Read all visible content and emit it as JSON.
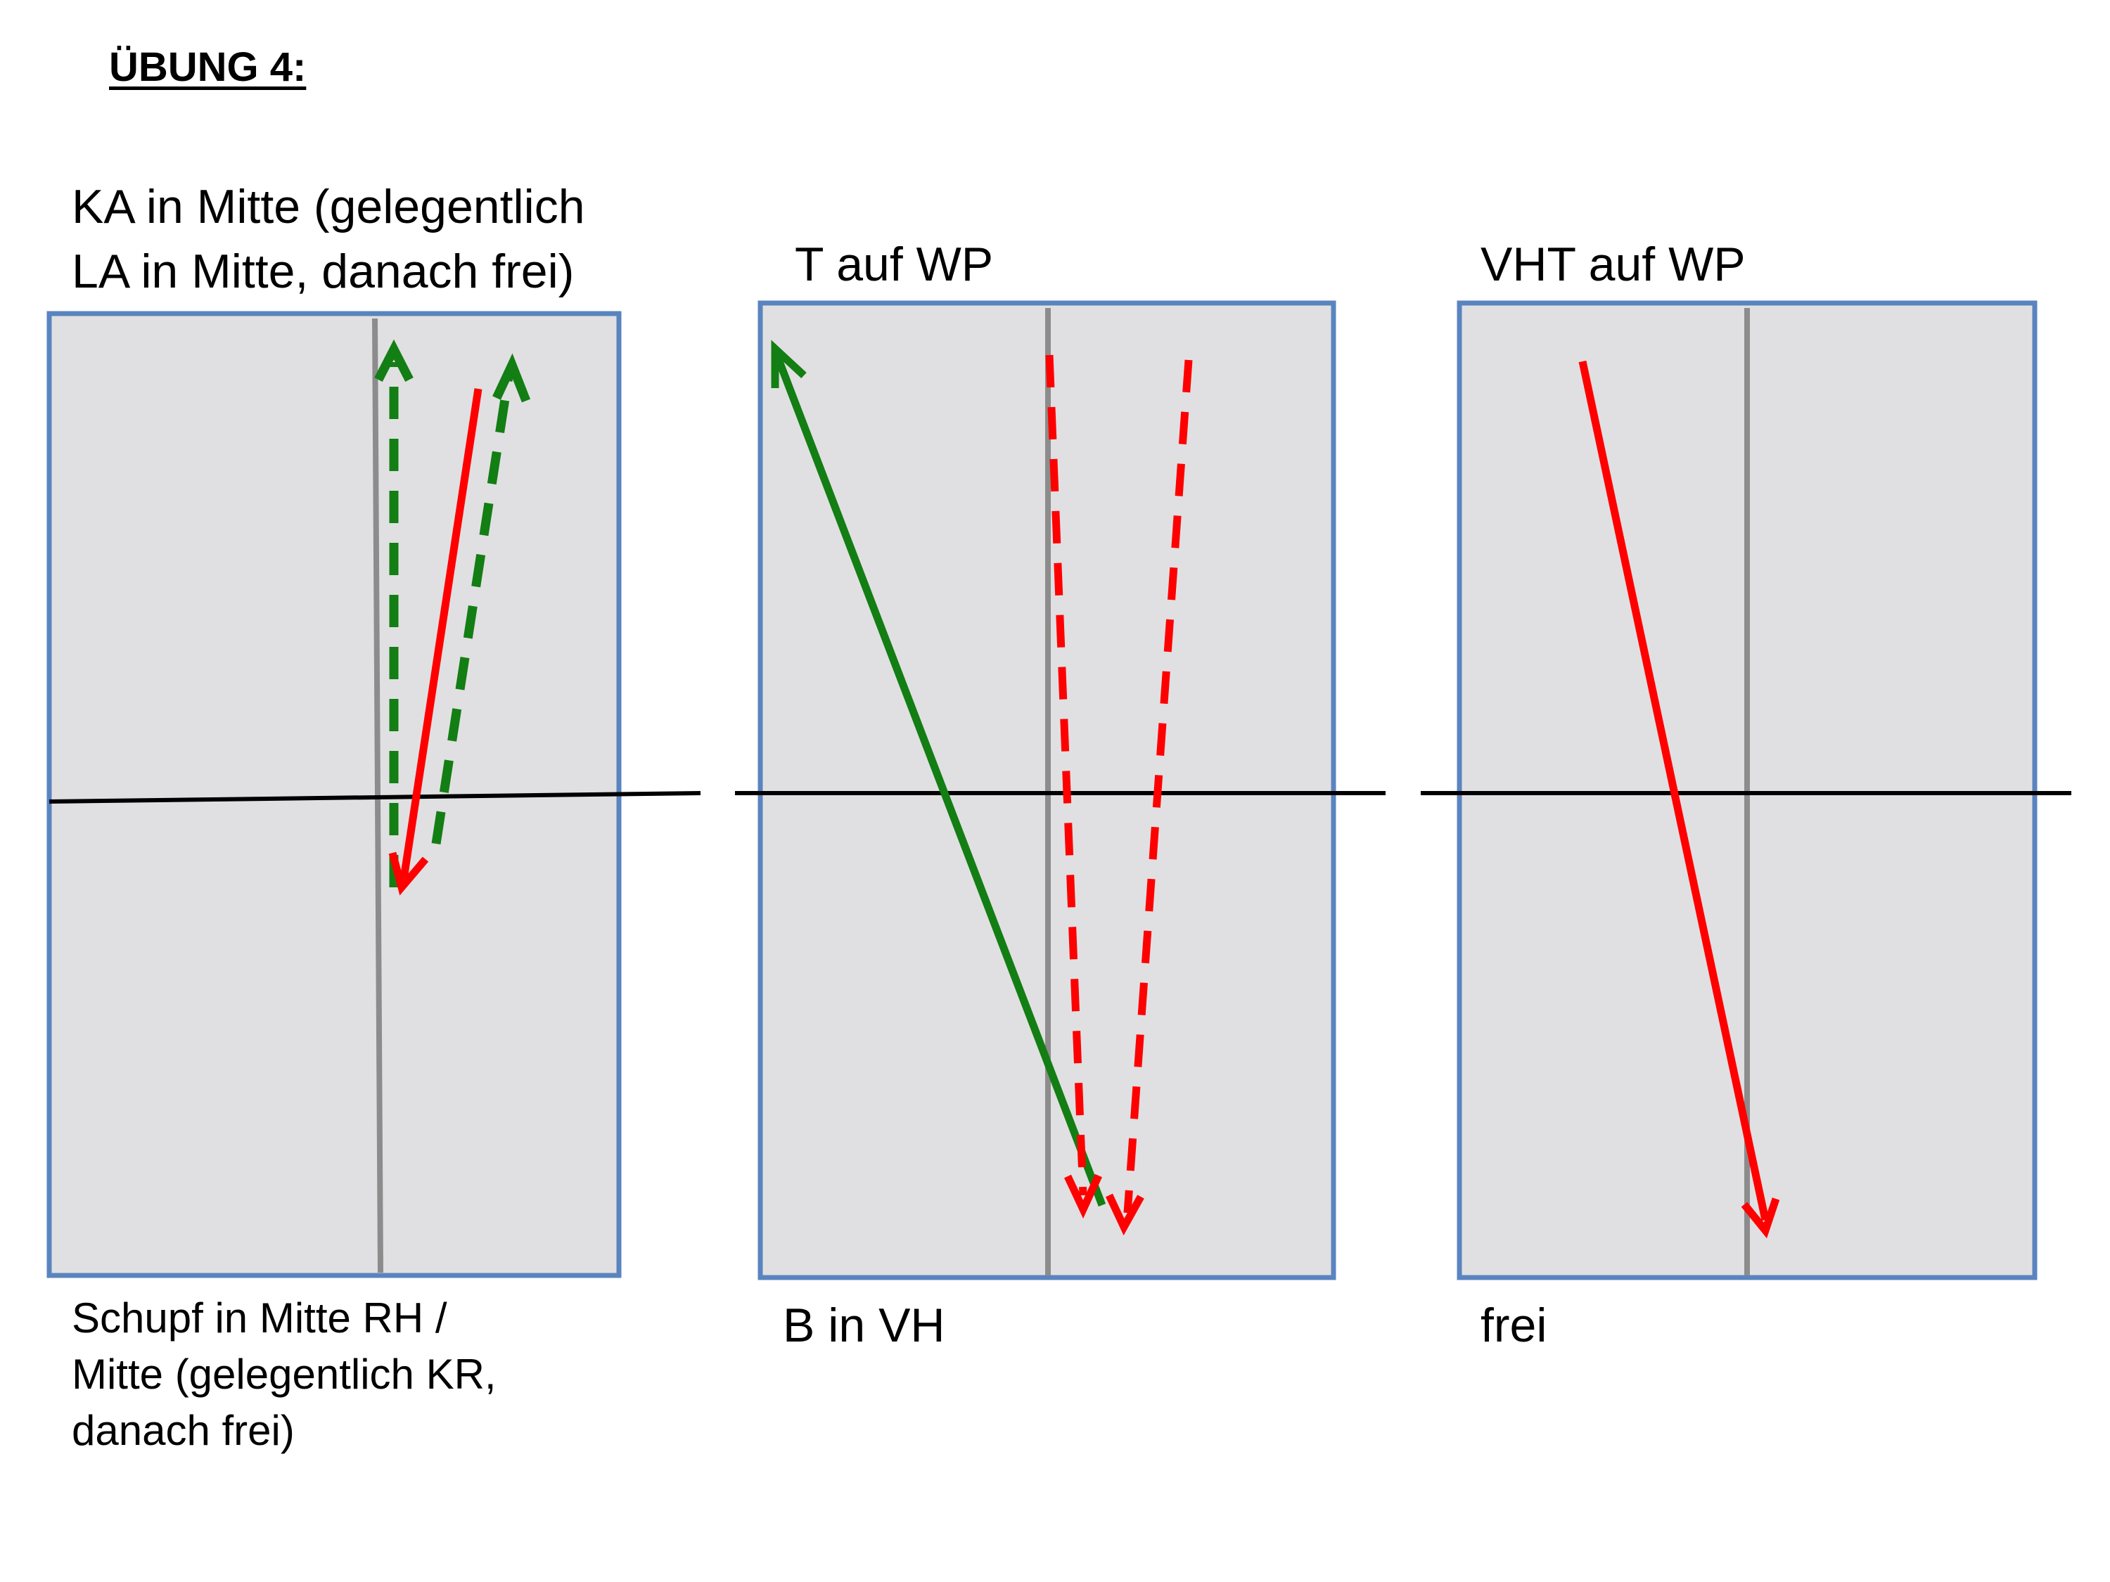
{
  "title": "ÜBUNG 4:",
  "colors": {
    "table_fill": "#e0e0e2",
    "table_border": "#5a84bf",
    "center_line": "#8c8c8c",
    "net": "#000000",
    "red_arrow": "#ff0000",
    "green_arrow": "#137e13"
  },
  "panels": [
    {
      "top_label": "KA in Mitte (gelegentlich\nLA in Mitte, danach frei)",
      "bottom_label": "Schupf in Mitte RH /\nMitte (gelegentlich KR,\ndanach frei)"
    },
    {
      "top_label": "T auf WP",
      "bottom_label": "B in VH"
    },
    {
      "top_label": "VHT auf WP",
      "bottom_label": "frei"
    }
  ]
}
